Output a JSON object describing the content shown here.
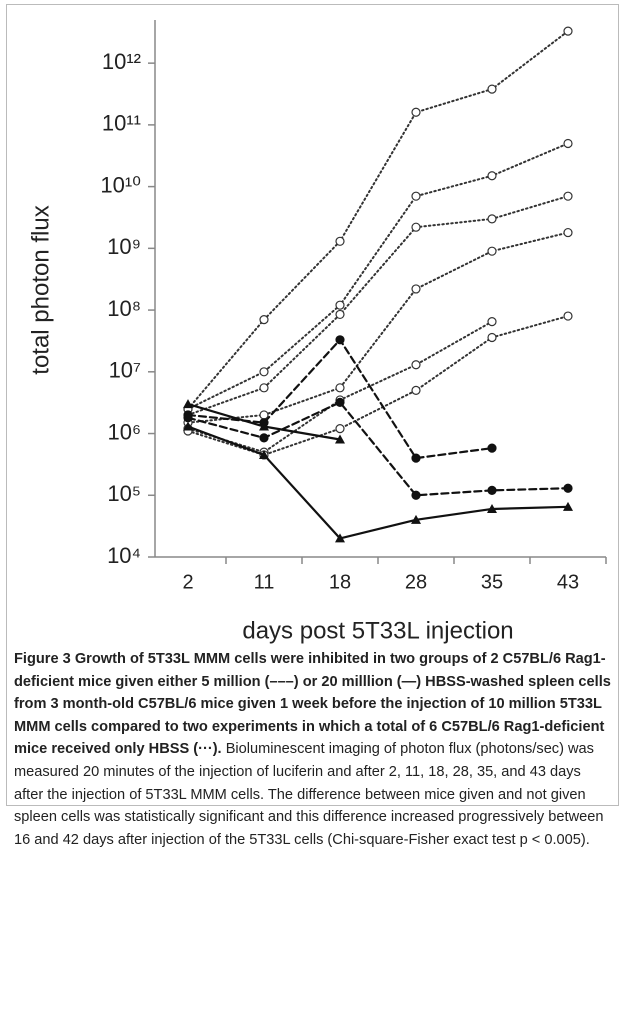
{
  "chart_data": {
    "type": "line",
    "xlabel": "days post 5T33L injection",
    "ylabel": "total photon flux",
    "categories": [
      "2",
      "11",
      "18",
      "28",
      "35",
      "43"
    ],
    "log_y": true,
    "ylim": [
      10000,
      5000000000000
    ],
    "yticks": [
      {
        "value": 10000,
        "label": "10⁴"
      },
      {
        "value": 100000,
        "label": "10⁵"
      },
      {
        "value": 1000000,
        "label": "10⁶"
      },
      {
        "value": 10000000,
        "label": "10⁷"
      },
      {
        "value": 100000000,
        "label": "10⁸"
      },
      {
        "value": 1000000000,
        "label": "10⁹"
      },
      {
        "value": 10000000000,
        "label": "10¹⁰"
      },
      {
        "value": 100000000000,
        "label": "10¹¹"
      },
      {
        "value": 1000000000000,
        "label": "10¹²"
      }
    ],
    "series": [
      {
        "color": "#333333",
        "dash": "dotted",
        "marker": "open-circle",
        "values": [
          2500000,
          70000000,
          1300000000,
          160000000000,
          380000000000,
          3300000000000
        ]
      },
      {
        "color": "#333333",
        "dash": "dotted",
        "marker": "open-circle",
        "values": [
          2500000,
          10000000,
          120000000,
          7000000000,
          15000000000,
          50000000000
        ]
      },
      {
        "color": "#333333",
        "dash": "dotted",
        "marker": "open-circle",
        "values": [
          2000000,
          5500000,
          85000000,
          2200000000,
          3000000000,
          7000000000
        ]
      },
      {
        "color": "#333333",
        "dash": "dotted",
        "marker": "open-circle",
        "values": [
          1500000,
          2000000,
          5500000,
          220000000,
          900000000,
          1800000000
        ]
      },
      {
        "color": "#333333",
        "dash": "dotted",
        "marker": "open-circle",
        "values": [
          1200000,
          500000,
          3500000,
          13000000,
          65000000,
          null
        ]
      },
      {
        "color": "#333333",
        "dash": "dotted",
        "marker": "open-circle",
        "values": [
          1100000,
          450000,
          1200000,
          5000000,
          36000000,
          80000000
        ]
      },
      {
        "color": "#111111",
        "dash": "dashed",
        "marker": "filled-circle",
        "values": [
          2000000,
          1500000,
          33000000,
          400000,
          580000,
          null
        ]
      },
      {
        "color": "#111111",
        "dash": "dashed",
        "marker": "filled-circle",
        "values": [
          1800000,
          850000,
          3200000,
          100000,
          120000,
          130000
        ]
      },
      {
        "color": "#111111",
        "dash": "solid",
        "marker": "triangle",
        "values": [
          3000000,
          1300000,
          800000,
          null,
          null,
          null
        ]
      },
      {
        "color": "#111111",
        "dash": "solid",
        "marker": "triangle",
        "values": [
          1300000,
          450000,
          20000,
          40000,
          60000,
          65000
        ]
      }
    ]
  },
  "caption": {
    "bold": "Figure 3 Growth of 5T33L MMM cells were inhibited in two groups of 2 C57BL/6 Rag1-deficient mice given either 5 million (–––) or 20 milllion (—) HBSS-washed spleen cells from 3 month-old C57BL/6 mice given 1 week before the injection of 10 million 5T33L MMM cells compared to two experiments in which a total of 6 C57BL/6 Rag1-deficient mice received only HBSS (···).",
    "text": "Bioluminescent imaging of photon flux (photons/sec) was measured 20 minutes of the injection of luciferin and after 2, 11, 18, 28, 35, and 43 days after the injection of 5T33L MMM cells. The difference between mice given and not given spleen cells was statistically significant and this difference increased progressively between 16 and 42 days after injection of the 5T33L cells (Chi-square-Fisher exact test p < 0.005)."
  }
}
